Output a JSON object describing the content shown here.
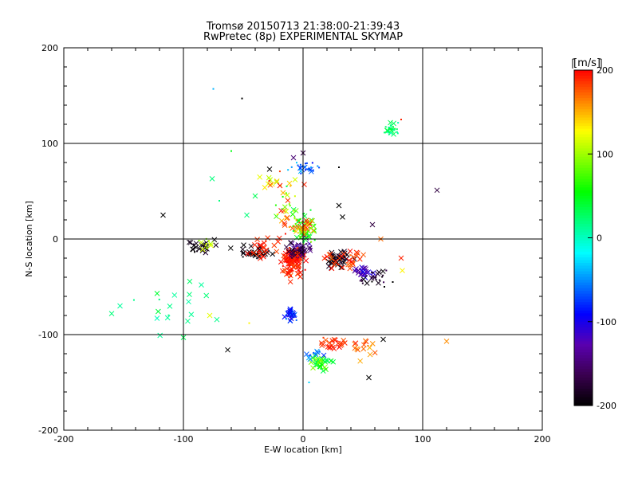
{
  "chart_data": {
    "type": "scatter",
    "title": "Tromsø 20150713 21:38:00-21:39:43",
    "subtitle": "RwPretec (8p) EXPERIMENTAL SKYMAP",
    "xlabel": "E-W location [km]",
    "ylabel": "N-S location [km]",
    "xlim": [
      -200,
      200
    ],
    "ylim": [
      -200,
      200
    ],
    "xticks": [
      "-200",
      "-100",
      "0",
      "100",
      "200"
    ],
    "yticks": [
      "-200",
      "-100",
      "0",
      "100",
      "200"
    ],
    "grid": true,
    "colorbar": {
      "label": "[m/s]",
      "min": -200,
      "max": 200,
      "ticks": [
        "200",
        "100",
        "0",
        "-100",
        "-200"
      ],
      "colormap": [
        "#000000",
        "#3a0050",
        "#5a00b0",
        "#0000ff",
        "#0080ff",
        "#00ffff",
        "#00ff80",
        "#00ff00",
        "#80ff00",
        "#ffff00",
        "#ff8000",
        "#ff0000"
      ]
    },
    "markers": {
      "cross": "x",
      "dot": "."
    },
    "clusters": [
      {
        "x": -8,
        "y": -20,
        "spread": [
          7,
          7
        ],
        "n": 90,
        "v": 195,
        "dv": 15,
        "marker": "x"
      },
      {
        "x": -3,
        "y": -10,
        "spread": [
          8,
          8
        ],
        "n": 50,
        "v": -160,
        "dv": 40,
        "marker": "x"
      },
      {
        "x": 0,
        "y": 10,
        "spread": [
          7,
          12
        ],
        "n": 80,
        "v": 60,
        "dv": 40,
        "marker": "."
      },
      {
        "x": -5,
        "y": 15,
        "spread": [
          10,
          8
        ],
        "n": 30,
        "v": 170,
        "dv": 30,
        "marker": "x"
      },
      {
        "x": -10,
        "y": -35,
        "spread": [
          8,
          6
        ],
        "n": 30,
        "v": 185,
        "dv": 15,
        "marker": "x"
      },
      {
        "x": 30,
        "y": -20,
        "spread": [
          12,
          8
        ],
        "n": 40,
        "v": -190,
        "dv": 10,
        "marker": "x"
      },
      {
        "x": 50,
        "y": -35,
        "spread": [
          6,
          4
        ],
        "n": 25,
        "v": -120,
        "dv": 30,
        "marker": "x"
      },
      {
        "x": 60,
        "y": -40,
        "spread": [
          10,
          6
        ],
        "n": 25,
        "v": -180,
        "dv": 20,
        "marker": "."
      },
      {
        "x": 35,
        "y": -20,
        "spread": [
          18,
          10
        ],
        "n": 30,
        "v": 185,
        "dv": 15,
        "marker": "x"
      },
      {
        "x": -40,
        "y": -15,
        "spread": [
          12,
          5
        ],
        "n": 35,
        "v": -195,
        "dv": 5,
        "marker": "x"
      },
      {
        "x": -30,
        "y": -10,
        "spread": [
          15,
          10
        ],
        "n": 25,
        "v": 190,
        "dv": 10,
        "marker": "x"
      },
      {
        "x": -85,
        "y": -8,
        "spread": [
          8,
          5
        ],
        "n": 25,
        "v": -190,
        "dv": 10,
        "marker": "x"
      },
      {
        "x": -80,
        "y": -5,
        "spread": [
          8,
          5
        ],
        "n": 12,
        "v": 110,
        "dv": 20,
        "marker": "."
      },
      {
        "x": 0,
        "y": 75,
        "spread": [
          10,
          5
        ],
        "n": 30,
        "v": -60,
        "dv": 30,
        "marker": "."
      },
      {
        "x": 75,
        "y": 115,
        "spread": [
          5,
          4
        ],
        "n": 30,
        "v": 20,
        "dv": 25,
        "marker": "."
      },
      {
        "x": -10,
        "y": -80,
        "spread": [
          4,
          5
        ],
        "n": 30,
        "v": -80,
        "dv": 30,
        "marker": "x"
      },
      {
        "x": 15,
        "y": -130,
        "spread": [
          8,
          6
        ],
        "n": 35,
        "v": 60,
        "dv": 40,
        "marker": "x"
      },
      {
        "x": 25,
        "y": -110,
        "spread": [
          10,
          5
        ],
        "n": 25,
        "v": 185,
        "dv": 15,
        "marker": "x"
      },
      {
        "x": 10,
        "y": -120,
        "spread": [
          5,
          5
        ],
        "n": 12,
        "v": -60,
        "dv": 20,
        "marker": "x"
      },
      {
        "x": 50,
        "y": -115,
        "spread": [
          8,
          8
        ],
        "n": 15,
        "v": 170,
        "dv": 25,
        "marker": "x"
      },
      {
        "x": -100,
        "y": -70,
        "spread": [
          30,
          25
        ],
        "n": 15,
        "v": 20,
        "dv": 20,
        "marker": "x"
      },
      {
        "x": -15,
        "y": 40,
        "spread": [
          12,
          20
        ],
        "n": 25,
        "v": 100,
        "dv": 100,
        "marker": "."
      },
      {
        "x": -25,
        "y": 60,
        "spread": [
          12,
          8
        ],
        "n": 12,
        "v": 150,
        "dv": 50,
        "marker": "x"
      }
    ],
    "points": [
      {
        "x": -117,
        "y": 25,
        "v": -200,
        "marker": "x"
      },
      {
        "x": 112,
        "y": 51,
        "v": -170,
        "marker": "x"
      },
      {
        "x": -76,
        "y": 63,
        "v": 20,
        "marker": "x"
      },
      {
        "x": -63,
        "y": -116,
        "v": -200,
        "marker": "x"
      },
      {
        "x": 120,
        "y": -107,
        "v": 160,
        "marker": "x"
      },
      {
        "x": -51,
        "y": 147,
        "v": -200,
        "marker": "."
      },
      {
        "x": -75,
        "y": 157,
        "v": -40,
        "marker": "."
      },
      {
        "x": -100,
        "y": -103,
        "v": 30,
        "marker": "x"
      },
      {
        "x": -160,
        "y": -78,
        "v": 20,
        "marker": "x"
      },
      {
        "x": -153,
        "y": -70,
        "v": 10,
        "marker": "x"
      },
      {
        "x": -122,
        "y": -57,
        "v": 40,
        "marker": "x"
      },
      {
        "x": -95,
        "y": -58,
        "v": 20,
        "marker": "x"
      },
      {
        "x": -85,
        "y": -48,
        "v": 10,
        "marker": "x"
      },
      {
        "x": -78,
        "y": -80,
        "v": 120,
        "marker": "x"
      },
      {
        "x": 82,
        "y": -20,
        "v": 190,
        "marker": "x"
      },
      {
        "x": 83,
        "y": -33,
        "v": 130,
        "marker": "x"
      },
      {
        "x": 67,
        "y": -105,
        "v": -200,
        "marker": "x"
      },
      {
        "x": 55,
        "y": -145,
        "v": -200,
        "marker": "x"
      },
      {
        "x": 58,
        "y": 15,
        "v": -170,
        "marker": "x"
      },
      {
        "x": 65,
        "y": 0,
        "v": 170,
        "marker": "x"
      },
      {
        "x": 33,
        "y": 23,
        "v": -200,
        "marker": "x"
      },
      {
        "x": 30,
        "y": 35,
        "v": -200,
        "marker": "x"
      },
      {
        "x": 0,
        "y": 90,
        "v": -170,
        "marker": "x"
      },
      {
        "x": -8,
        "y": 85,
        "v": -150,
        "marker": "x"
      },
      {
        "x": -28,
        "y": 73,
        "v": -200,
        "marker": "x"
      },
      {
        "x": 1,
        "y": 57,
        "v": 190,
        "marker": "x"
      },
      {
        "x": -40,
        "y": 45,
        "v": 30,
        "marker": "x"
      },
      {
        "x": -47,
        "y": 25,
        "v": 20,
        "marker": "x"
      },
      {
        "x": 68,
        "y": -50,
        "v": -200,
        "marker": "."
      },
      {
        "x": 75,
        "y": -45,
        "v": -200,
        "marker": "."
      },
      {
        "x": 5,
        "y": -150,
        "v": -30,
        "marker": "."
      },
      {
        "x": -45,
        "y": -88,
        "v": 130,
        "marker": "."
      },
      {
        "x": -70,
        "y": 40,
        "v": 20,
        "marker": "."
      },
      {
        "x": -60,
        "y": 92,
        "v": 50,
        "marker": "."
      },
      {
        "x": 82,
        "y": 125,
        "v": 190,
        "marker": "."
      },
      {
        "x": 30,
        "y": 75,
        "v": -200,
        "marker": "."
      }
    ]
  }
}
